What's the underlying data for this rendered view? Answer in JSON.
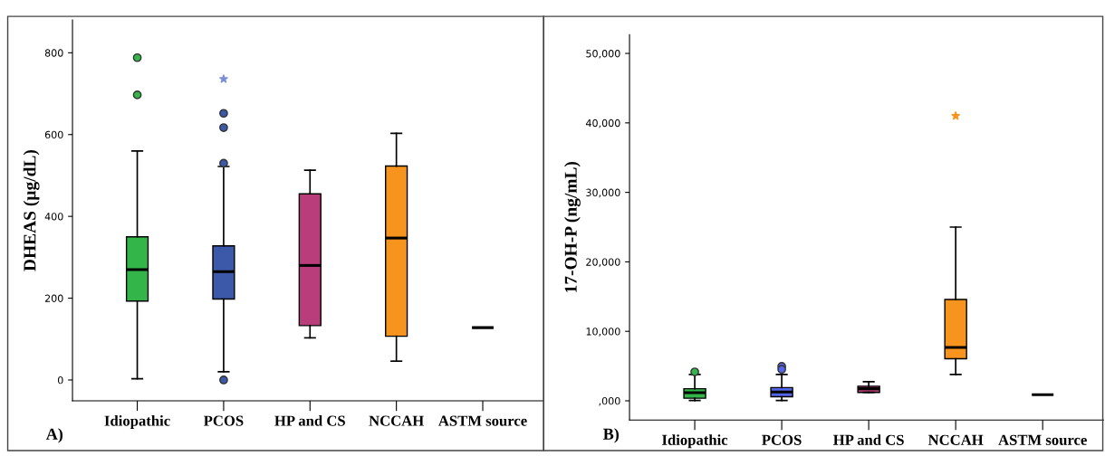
{
  "chart_data": [
    {
      "type": "box",
      "categories": [
        "Idiopathic",
        "PCOS",
        "HP and CS",
        "NCCAH",
        "ASTM source"
      ],
      "ylabel": "DHEAS (µg/dL)",
      "ylim": [
        -51,
        880
      ],
      "yticks": [
        0,
        200,
        400,
        600,
        800
      ],
      "grid": false,
      "annotations": [
        "A)"
      ],
      "colors": [
        "#33b54a",
        "#3c58a8",
        "#b83d7a",
        "#f7941d",
        "#000000"
      ],
      "boxes": [
        {
          "low": 3,
          "q1": 193,
          "median": 270,
          "q3": 350,
          "high": 560,
          "outliers": [
            788,
            697
          ]
        },
        {
          "low": 20,
          "q1": 198,
          "median": 265,
          "q3": 328,
          "high": 522,
          "outliers": [
            652,
            617,
            530,
            0
          ]
        },
        {
          "low": 103,
          "q1": 133,
          "median": 280,
          "q3": 455,
          "high": 513
        },
        {
          "low": 46,
          "q1": 107,
          "median": 347,
          "q3": 523,
          "high": 603
        },
        {
          "low": 128,
          "q1": 128,
          "median": 128,
          "q3": 128,
          "high": 128
        }
      ],
      "series": [
        {
          "type": "scatter",
          "x": [
            "PCOS"
          ],
          "values": [
            736
          ],
          "color": "#7b8fd6",
          "marker": "star"
        }
      ]
    },
    {
      "type": "box",
      "categories": [
        "Idiopathic",
        "PCOS",
        "HP and CS",
        "NCCAH",
        "ASTM source"
      ],
      "ylabel": "17-OH-P (ng/mL)",
      "ylim": [
        -2760,
        52700
      ],
      "yticks": [
        {
          "value": 0,
          "label": ",000"
        },
        {
          "value": 10000,
          "label": "10,000"
        },
        {
          "value": 20000,
          "label": "20,000"
        },
        {
          "value": 30000,
          "label": "30,000"
        },
        {
          "value": 40000,
          "label": "40,000"
        },
        {
          "value": 50000,
          "label": "50,000"
        }
      ],
      "grid": false,
      "annotations": [
        "B)"
      ],
      "colors": [
        "#33b54a",
        "#5466e8",
        "#b83d7a",
        "#f7941d",
        "#000000"
      ],
      "boxes": [
        {
          "low": 50,
          "q1": 370,
          "median": 1160,
          "q3": 1740,
          "high": 3790,
          "outliers": [
            4160
          ]
        },
        {
          "low": 50,
          "q1": 580,
          "median": 1260,
          "q3": 1900,
          "high": 3790,
          "outliers": [
            4950,
            4530
          ]
        },
        {
          "low": 1210,
          "q1": 1210,
          "median": 1740,
          "q3": 2100,
          "high": 2740
        },
        {
          "low": 3790,
          "q1": 6050,
          "median": 7680,
          "q3": 14580,
          "high": 25000
        },
        {
          "low": 890,
          "q1": 890,
          "median": 890,
          "q3": 890,
          "high": 890
        }
      ],
      "series": [
        {
          "type": "scatter",
          "x": [
            "NCCAH"
          ],
          "values": [
            41000
          ],
          "color": "#f7941d",
          "marker": "star"
        }
      ]
    }
  ]
}
